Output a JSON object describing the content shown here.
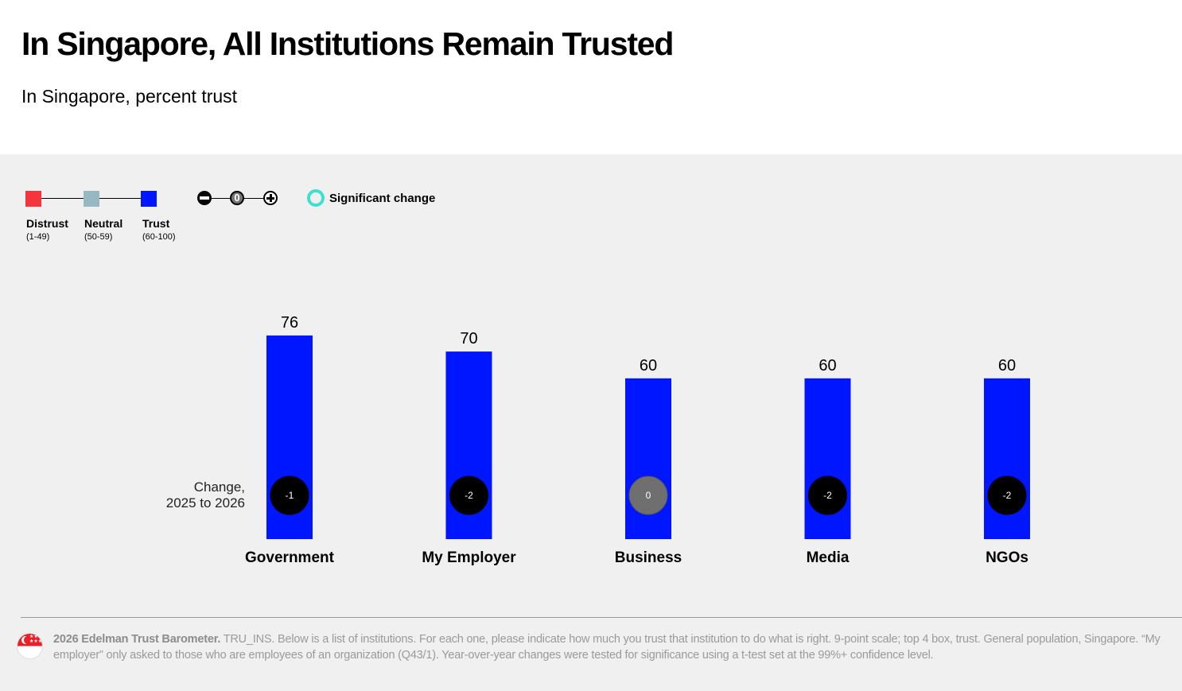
{
  "title": "In Singapore, All Institutions Remain Trusted",
  "subtitle": "In Singapore, percent trust",
  "legend": {
    "items": [
      {
        "label": "Distrust",
        "range": "(1-49)",
        "color": "#f2353f"
      },
      {
        "label": "Neutral",
        "range": "(50-59)",
        "color": "#97b8c2"
      },
      {
        "label": "Trust",
        "range": "(60-100)",
        "color": "#0016ff"
      }
    ],
    "change_zero": "0",
    "significant_label": "Significant change",
    "significant_color": "#40e0d0"
  },
  "change_label_line1": "Change,",
  "change_label_line2": "2025 to 2026",
  "chart_data": {
    "type": "bar",
    "title": "In Singapore, All Institutions Remain Trusted",
    "subtitle": "In Singapore, percent trust",
    "categories": [
      "Government",
      "My Employer",
      "Business",
      "Media",
      "NGOs"
    ],
    "values": [
      76,
      70,
      60,
      60,
      60
    ],
    "changes": [
      "-1",
      "-2",
      "0",
      "-2",
      "-2"
    ],
    "change_colors": [
      "#000000",
      "#000000",
      "#6f6f6f",
      "#000000",
      "#000000"
    ],
    "bar_color": "#0016ff",
    "xlabel": "",
    "ylabel": "",
    "ylim": [
      0,
      100
    ],
    "grid": false
  },
  "footnote": {
    "source_bold": "2026 Edelman Trust Barometer.",
    "text": " TRU_INS. Below is a list of institutions. For each one, please indicate how much you trust that institution to do what is right. 9-point scale; top 4 box, trust. General population, Singapore. “My employer” only asked to those who are employees of an organization (Q43/1). Year-over-year changes were tested for significance using a t-test set at the 99%+ confidence level."
  }
}
